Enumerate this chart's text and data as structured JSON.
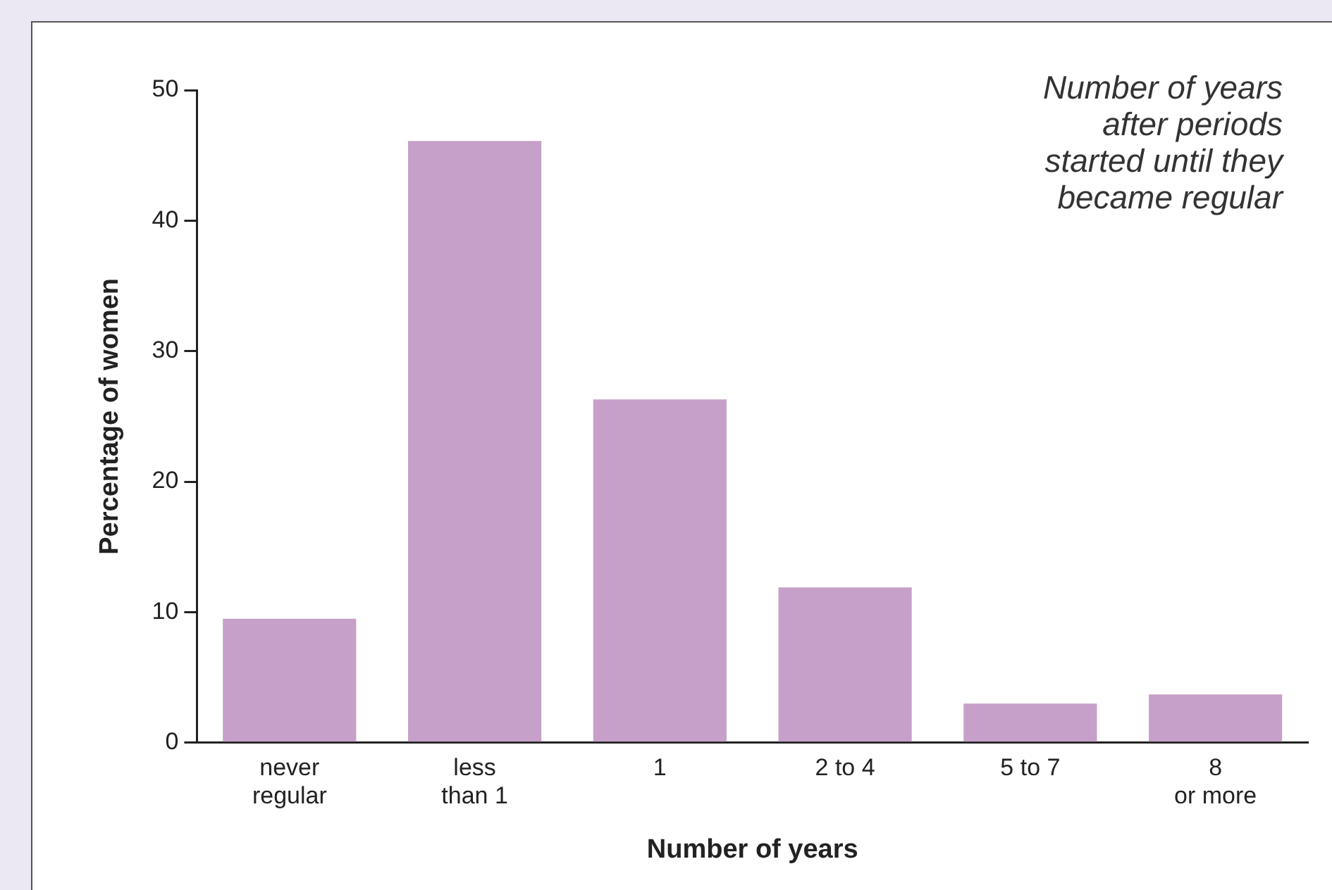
{
  "chart_data": {
    "type": "bar",
    "title": "Number of years\nafter periods\nstarted until they\nbecame regular",
    "xlabel": "Number of years",
    "ylabel": "Percentage of women",
    "categories": [
      "never\nregular",
      "less\nthan 1",
      "1",
      "2 to 4",
      "5 to 7",
      "8\nor more"
    ],
    "values": [
      9.5,
      46.1,
      26.3,
      11.9,
      3.0,
      3.7
    ],
    "color": "#c6a0c9",
    "ylim": [
      0,
      50
    ],
    "yticks": [
      0,
      10,
      20,
      30,
      40,
      50
    ],
    "grid": false,
    "legend": false
  }
}
